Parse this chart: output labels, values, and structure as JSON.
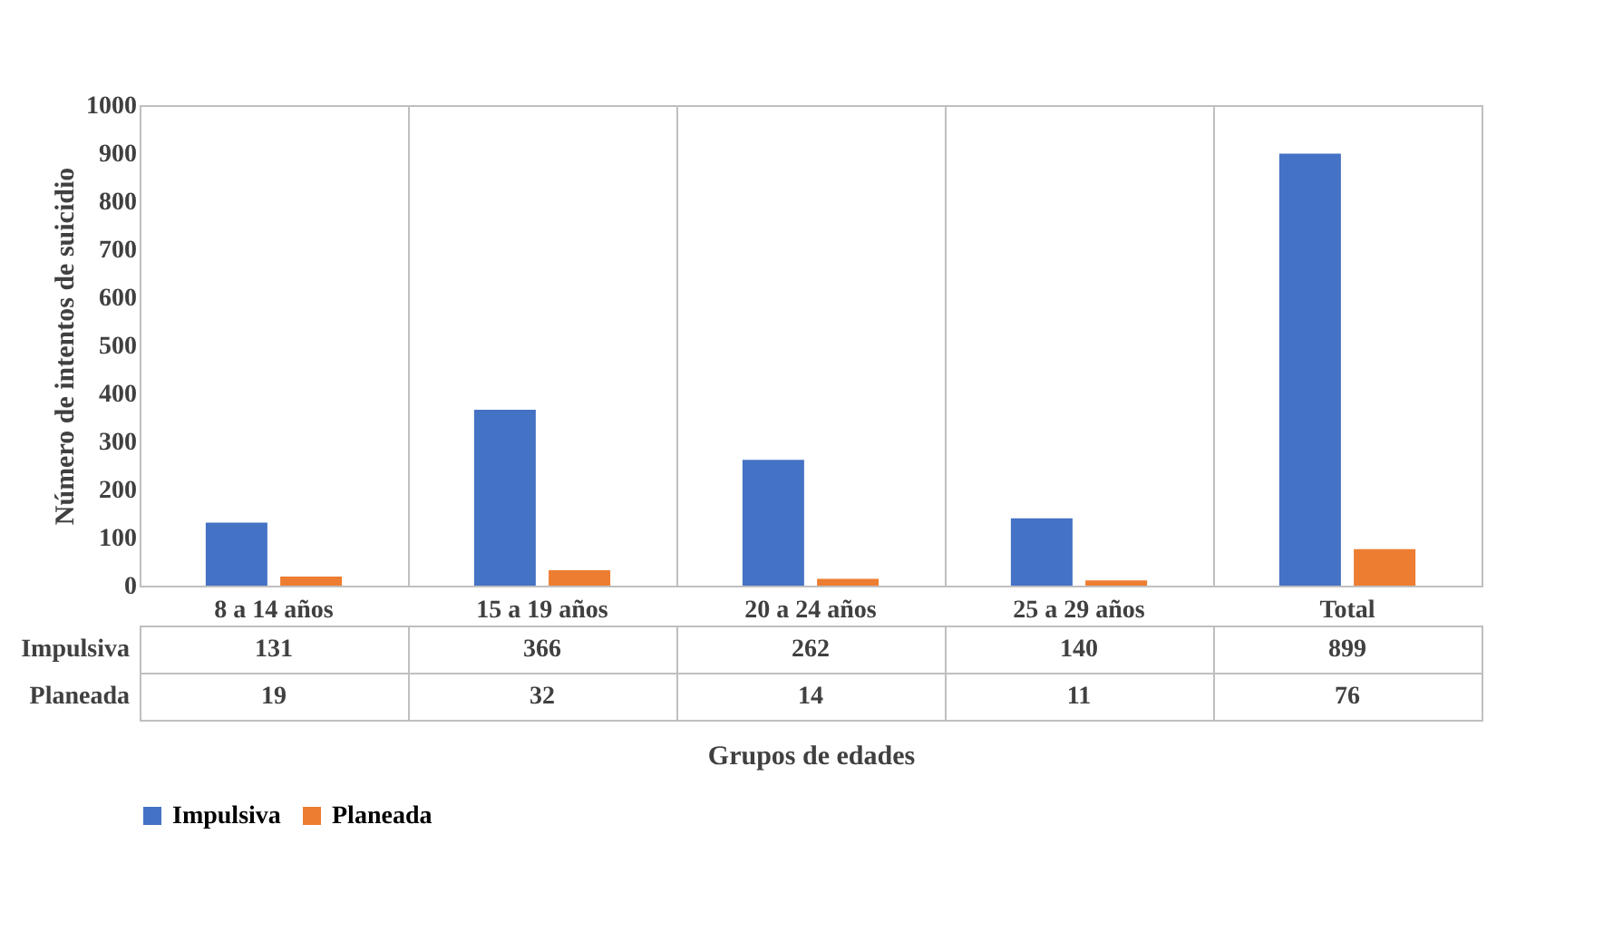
{
  "chart_data": {
    "type": "bar",
    "xlabel": "Grupos de edades",
    "ylabel": "Número de intentos de suicidio",
    "categories": [
      "8 a 14 años",
      "15 a 19 años",
      "20 a 24 años",
      "25 a 29 años",
      "Total"
    ],
    "series": [
      {
        "name": "Impulsiva",
        "color": "#4472c4",
        "values": [
          131,
          366,
          262,
          140,
          899
        ]
      },
      {
        "name": "Planeada",
        "color": "#ed7d31",
        "values": [
          19,
          32,
          14,
          11,
          76
        ]
      }
    ],
    "ylim": [
      0,
      1000
    ],
    "yticks": [
      0,
      100,
      200,
      300,
      400,
      500,
      600,
      700,
      800,
      900,
      1000
    ],
    "grid": false,
    "legend": "bottom",
    "data_labels": true
  }
}
